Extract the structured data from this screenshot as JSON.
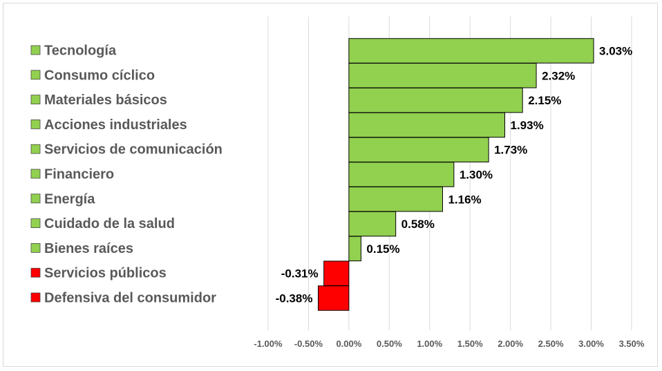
{
  "chart_data": {
    "type": "bar",
    "orientation": "horizontal",
    "categories": [
      "Tecnología",
      "Consumo cíclico",
      "Materiales básicos",
      "Acciones industriales",
      "Servicios de comunicación",
      "Financiero",
      "Energía",
      "Cuidado de la salud",
      "Bienes raíces",
      "Servicios públicos",
      "Defensiva del consumidor"
    ],
    "values": [
      3.03,
      2.32,
      2.15,
      1.93,
      1.73,
      1.3,
      1.16,
      0.58,
      0.15,
      -0.31,
      -0.38
    ],
    "value_labels": [
      "3.03%",
      "2.32%",
      "2.15%",
      "1.93%",
      "1.73%",
      "1.30%",
      "1.16%",
      "0.58%",
      "0.15%",
      "-0.31%",
      "-0.38%"
    ],
    "xlim": [
      -1.0,
      3.5
    ],
    "xticks": [
      -1.0,
      -0.5,
      0.0,
      0.5,
      1.0,
      1.5,
      2.0,
      2.5,
      3.0,
      3.5
    ],
    "xtick_labels": [
      "-1.00%",
      "-0.50%",
      "0.00%",
      "0.50%",
      "1.00%",
      "1.50%",
      "2.00%",
      "2.50%",
      "3.00%",
      "3.50%"
    ],
    "grid": true,
    "legend_placement": "left",
    "colors": {
      "positive": "#92d050",
      "negative": "#ff0000",
      "border": "#000000",
      "grid": "#d9d9d9"
    }
  }
}
